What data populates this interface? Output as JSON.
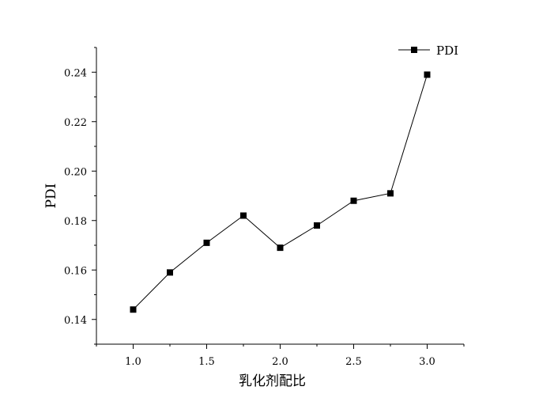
{
  "chart_data": {
    "type": "line",
    "xlabel": "乳化剂配比",
    "ylabel": "PDI",
    "xlim": [
      0.75,
      3.25
    ],
    "ylim": [
      0.13,
      0.25
    ],
    "x_ticks": [
      1.0,
      1.5,
      2.0,
      2.5,
      3.0
    ],
    "x_tick_labels": [
      "1.0",
      "1.5",
      "2.0",
      "2.5",
      "3.0"
    ],
    "y_ticks": [
      0.14,
      0.16,
      0.18,
      0.2,
      0.22,
      0.24
    ],
    "y_tick_labels": [
      "0.14",
      "0.16",
      "0.18",
      "0.20",
      "0.22",
      "0.24"
    ],
    "grid": false,
    "legend_position": "top-right",
    "series": [
      {
        "name": "PDI",
        "marker": "square",
        "color": "#000000",
        "x": [
          1.0,
          1.25,
          1.5,
          1.75,
          2.0,
          2.25,
          2.5,
          2.75,
          3.0
        ],
        "y": [
          0.144,
          0.159,
          0.171,
          0.182,
          0.169,
          0.178,
          0.188,
          0.191,
          0.239
        ]
      }
    ]
  }
}
